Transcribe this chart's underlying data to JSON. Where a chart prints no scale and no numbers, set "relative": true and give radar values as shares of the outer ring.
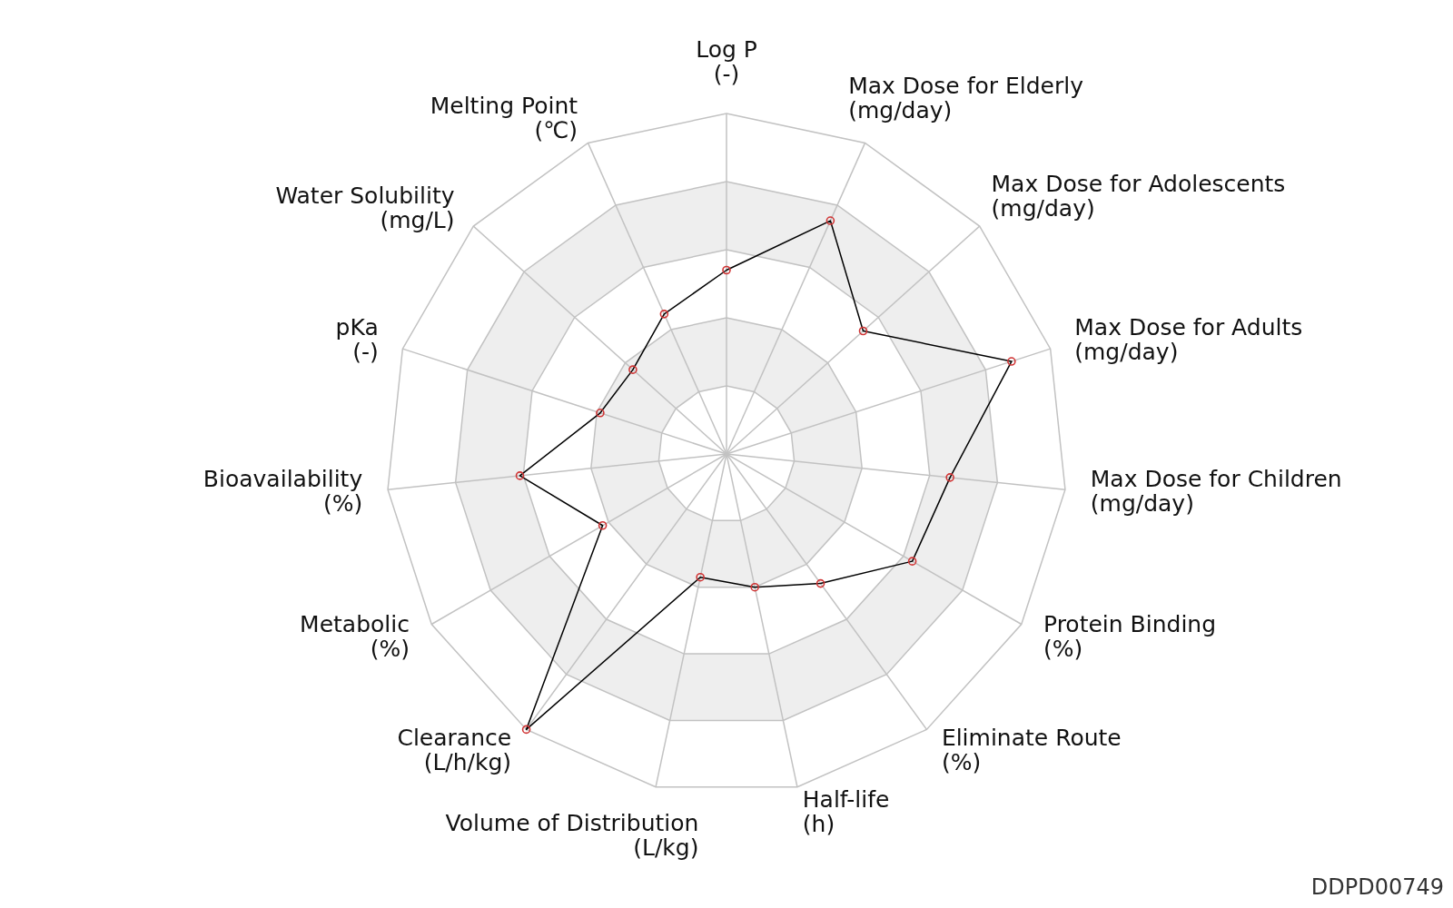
{
  "chart_data": {
    "type": "radar",
    "relative": true,
    "categories": [
      "Log P\n(-)",
      "Max Dose for Elderly\n(mg/day)",
      "Max Dose for Adolescents\n(mg/day)",
      "Max Dose for Adults\n(mg/day)",
      "Max Dose for Children\n(mg/day)",
      "Protein Binding\n(%)",
      "Eliminate Route\n(%)",
      "Half-life\n(h)",
      "Volume of Distribution\n(L/kg)",
      "Clearance\n(L/h/kg)",
      "Metabolic\n(%)",
      "Bioavailability\n(%)",
      "pKa\n(-)",
      "Water Solubility\n(mg/L)",
      "Melting Point\n(℃)"
    ],
    "series": [
      {
        "color": "#000000",
        "values": [
          0.54,
          0.75,
          0.54,
          0.88,
          0.66,
          0.63,
          0.47,
          0.4,
          0.37,
          1,
          0.42,
          0.61,
          0.39,
          0.37,
          0.45
        ]
      }
    ],
    "grid": true,
    "marker": "circle",
    "annotations": [
      "DDPD00749"
    ]
  }
}
